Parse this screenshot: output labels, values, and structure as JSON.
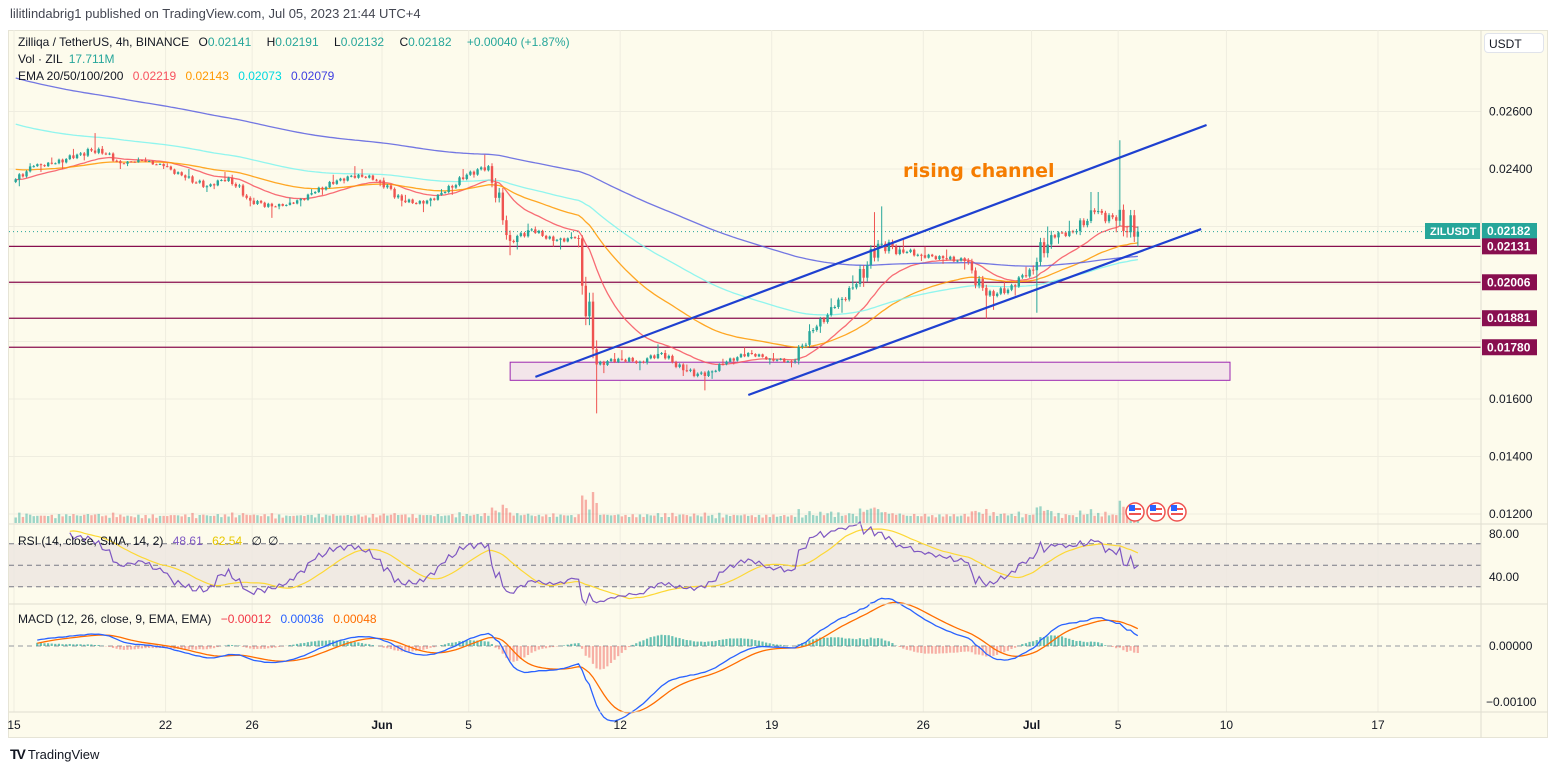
{
  "header": {
    "published": "lilitlindabrig1 published on TradingView.com, Jul 05, 2023 21:44 UTC+4"
  },
  "legend": {
    "symbol": "Zilliqa / TetherUS, 4h, BINANCE",
    "o_label": "O",
    "o": "0.02141",
    "h_label": "H",
    "h": "0.02191",
    "l_label": "L",
    "l": "0.02132",
    "c_label": "C",
    "c": "0.02182",
    "change": "+0.00040 (+1.87%)",
    "vol_label": "Vol · ZIL",
    "vol": "17.711M",
    "ema_label": "EMA 20/50/100/200",
    "ema": [
      "0.02219",
      "0.02143",
      "0.02073",
      "0.02079"
    ]
  },
  "rsi": {
    "label": "RSI (14, close, SMA, 14, 2)",
    "rsi_value": "48.61",
    "sma_value": "62.54",
    "extra1": "∅",
    "extra2": "∅",
    "ticks": [
      "80.00",
      "40.00"
    ]
  },
  "macd": {
    "label": "MACD (12, 26, close, 9, EMA, EMA)",
    "hist_value": "−0.00012",
    "macd_value": "0.00036",
    "signal_value": "0.00048",
    "ticks": [
      "0.00000",
      "−0.00100"
    ]
  },
  "price_axis": {
    "currency": "USDT",
    "ticks": [
      {
        "label": "0.02600",
        "value": 0.026
      },
      {
        "label": "0.02400",
        "value": 0.024
      },
      {
        "label": "0.01600",
        "value": 0.016
      },
      {
        "label": "0.01400",
        "value": 0.014
      },
      {
        "label": "0.01200",
        "value": 0.012
      }
    ],
    "last_symbol": "ZILUSDT",
    "last_price": "0.02182",
    "levels": [
      "0.02131",
      "0.02006",
      "0.01881",
      "0.01780"
    ]
  },
  "time_axis": {
    "ticks": [
      {
        "label": "15",
        "date": "2023-05-15"
      },
      {
        "label": "22",
        "date": "2023-05-22"
      },
      {
        "label": "26",
        "date": "2023-05-26"
      },
      {
        "label": "Jun",
        "date": "2023-06-01"
      },
      {
        "label": "5",
        "date": "2023-06-05"
      },
      {
        "label": "12",
        "date": "2023-06-12"
      },
      {
        "label": "19",
        "date": "2023-06-19"
      },
      {
        "label": "26",
        "date": "2023-06-26"
      },
      {
        "label": "Jul",
        "date": "2023-07-01"
      },
      {
        "label": "5",
        "date": "2023-07-05"
      },
      {
        "label": "10",
        "date": "2023-07-10"
      },
      {
        "label": "17",
        "date": "2023-07-17"
      }
    ]
  },
  "annotation": {
    "text": "rising channel",
    "color": "#f57c00"
  },
  "footer": {
    "brand": "TradingView",
    "logo": "TV"
  },
  "colors": {
    "up": "#26a69a",
    "down": "#ef5350",
    "ema20": "#f7525f",
    "ema50": "#ff9800",
    "ema100": "#7df3ef",
    "ema200": "#5b5fe0",
    "level": "#880e4f",
    "channel": "#1e40d0",
    "rsi": "#7e57c2",
    "rsi_sma": "#fdd835",
    "macd": "#2962ff",
    "signal": "#ff6d00",
    "background": "#fdfbec"
  },
  "chart_data": {
    "type": "candlestick",
    "title": "Zilliqa / TetherUS, 4h, BINANCE",
    "ylim": [
      0.0115,
      0.0281
    ],
    "grid": true,
    "daily_ohlc": [
      [
        "2023-05-15",
        0.02355,
        0.0242,
        0.0234,
        0.0241
      ],
      [
        "2023-05-16",
        0.0241,
        0.0244,
        0.0239,
        0.0242
      ],
      [
        "2023-05-17",
        0.0242,
        0.0247,
        0.024,
        0.0245
      ],
      [
        "2023-05-18",
        0.0245,
        0.02525,
        0.0243,
        0.0247
      ],
      [
        "2023-05-19",
        0.0247,
        0.0248,
        0.024,
        0.0242
      ],
      [
        "2023-05-20",
        0.0242,
        0.0244,
        0.0241,
        0.0243
      ],
      [
        "2023-05-21",
        0.0243,
        0.0244,
        0.024,
        0.0241
      ],
      [
        "2023-05-22",
        0.0241,
        0.0242,
        0.0236,
        0.0237
      ],
      [
        "2023-05-23",
        0.0237,
        0.024,
        0.0232,
        0.0234
      ],
      [
        "2023-05-24",
        0.0234,
        0.0239,
        0.0233,
        0.0237
      ],
      [
        "2023-05-25",
        0.0237,
        0.0238,
        0.0227,
        0.0229
      ],
      [
        "2023-05-26",
        0.0229,
        0.023,
        0.0223,
        0.0227
      ],
      [
        "2023-05-27",
        0.0227,
        0.023,
        0.0226,
        0.0228
      ],
      [
        "2023-05-28",
        0.0228,
        0.0233,
        0.0227,
        0.0232
      ],
      [
        "2023-05-29",
        0.0232,
        0.0238,
        0.0231,
        0.0236
      ],
      [
        "2023-05-30",
        0.0236,
        0.0241,
        0.0235,
        0.0238
      ],
      [
        "2023-05-31",
        0.0238,
        0.024,
        0.0234,
        0.0236
      ],
      [
        "2023-06-01",
        0.0236,
        0.0237,
        0.0227,
        0.0229
      ],
      [
        "2023-06-02",
        0.0229,
        0.0231,
        0.0225,
        0.0228
      ],
      [
        "2023-06-03",
        0.0228,
        0.0233,
        0.0227,
        0.0232
      ],
      [
        "2023-06-04",
        0.0232,
        0.024,
        0.0231,
        0.0238
      ],
      [
        "2023-06-05",
        0.0238,
        0.0245,
        0.0237,
        0.0241
      ],
      [
        "2023-06-06",
        0.0241,
        0.0242,
        0.021,
        0.0215
      ],
      [
        "2023-06-07",
        0.0215,
        0.0221,
        0.0212,
        0.0219
      ],
      [
        "2023-06-08",
        0.0219,
        0.022,
        0.0213,
        0.0215
      ],
      [
        "2023-06-09",
        0.0215,
        0.0218,
        0.0212,
        0.0216
      ],
      [
        "2023-06-10",
        0.0216,
        0.0217,
        0.0155,
        0.0172
      ],
      [
        "2023-06-11",
        0.0172,
        0.0176,
        0.0169,
        0.0174
      ],
      [
        "2023-06-12",
        0.0174,
        0.0177,
        0.017,
        0.0173
      ],
      [
        "2023-06-13",
        0.0173,
        0.0179,
        0.0172,
        0.0176
      ],
      [
        "2023-06-14",
        0.0176,
        0.0177,
        0.0168,
        0.017
      ],
      [
        "2023-06-15",
        0.017,
        0.0172,
        0.0163,
        0.0168
      ],
      [
        "2023-06-16",
        0.0168,
        0.0174,
        0.0167,
        0.0173
      ],
      [
        "2023-06-17",
        0.0173,
        0.0178,
        0.0172,
        0.0176
      ],
      [
        "2023-06-18",
        0.0176,
        0.0177,
        0.0172,
        0.0174
      ],
      [
        "2023-06-19",
        0.0174,
        0.0176,
        0.0171,
        0.0173
      ],
      [
        "2023-06-20",
        0.0173,
        0.0186,
        0.0172,
        0.0184
      ],
      [
        "2023-06-21",
        0.0184,
        0.0195,
        0.0183,
        0.0192
      ],
      [
        "2023-06-22",
        0.0192,
        0.0203,
        0.019,
        0.02
      ],
      [
        "2023-06-23",
        0.02,
        0.0225,
        0.0199,
        0.0214
      ],
      [
        "2023-06-24",
        0.0214,
        0.0227,
        0.021,
        0.0212
      ],
      [
        "2023-06-25",
        0.0212,
        0.0216,
        0.0208,
        0.021
      ],
      [
        "2023-06-26",
        0.021,
        0.0213,
        0.0207,
        0.0209
      ],
      [
        "2023-06-27",
        0.0209,
        0.0212,
        0.0205,
        0.0208
      ],
      [
        "2023-06-28",
        0.0208,
        0.0209,
        0.0188,
        0.0196
      ],
      [
        "2023-06-29",
        0.0196,
        0.0201,
        0.0191,
        0.0198
      ],
      [
        "2023-06-30",
        0.0198,
        0.0206,
        0.0196,
        0.0205
      ],
      [
        "2023-07-01",
        0.0205,
        0.022,
        0.019,
        0.0217
      ],
      [
        "2023-07-02",
        0.0217,
        0.0222,
        0.0214,
        0.0218
      ],
      [
        "2023-07-03",
        0.0218,
        0.0232,
        0.0217,
        0.0225
      ],
      [
        "2023-07-04",
        0.0225,
        0.0232,
        0.0218,
        0.0222
      ],
      [
        "2023-07-05",
        0.0222,
        0.025,
        0.0213,
        0.02182
      ]
    ],
    "horizontal_levels": [
      0.02131,
      0.02006,
      0.01881,
      0.0178
    ],
    "last_price": 0.02182,
    "channel_upper": [
      [
        "2023-06-08T02:00",
        0.01677
      ],
      [
        "2023-07-09T02:00",
        0.02553
      ]
    ],
    "channel_lower": [
      [
        "2023-06-17T22:00",
        0.01614
      ],
      [
        "2023-07-08T20:00",
        0.02191
      ]
    ],
    "support_zone": {
      "from": "2023-06-06T22:00",
      "to": "2023-07-10T04:00",
      "low": 0.01665,
      "high": 0.01728
    },
    "rsi_bands": [
      70,
      50,
      30
    ],
    "event_flags": 3
  }
}
